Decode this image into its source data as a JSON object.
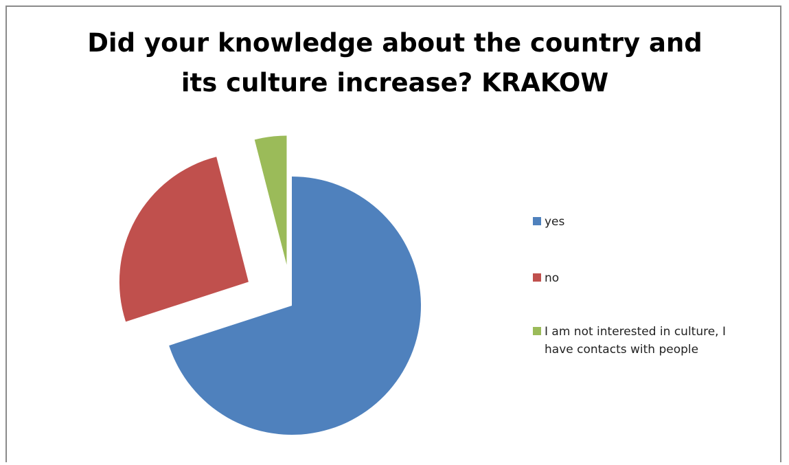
{
  "chart_data": {
    "type": "pie",
    "title_lines": [
      "Did your knowledge about the country and",
      "its culture increase? KRAKOW"
    ],
    "slices": [
      {
        "label": "yes",
        "value": 70,
        "color": "#4f81bd"
      },
      {
        "label": "no",
        "value": 26,
        "color": "#c0504d"
      },
      {
        "label": "I am not interested in culture, I have contacts with people",
        "label_lines": [
          "I am not interested in culture, I",
          "have contacts with people"
        ],
        "value": 4,
        "color": "#9bbb59"
      }
    ],
    "legend_position": "right",
    "exploded": true
  }
}
